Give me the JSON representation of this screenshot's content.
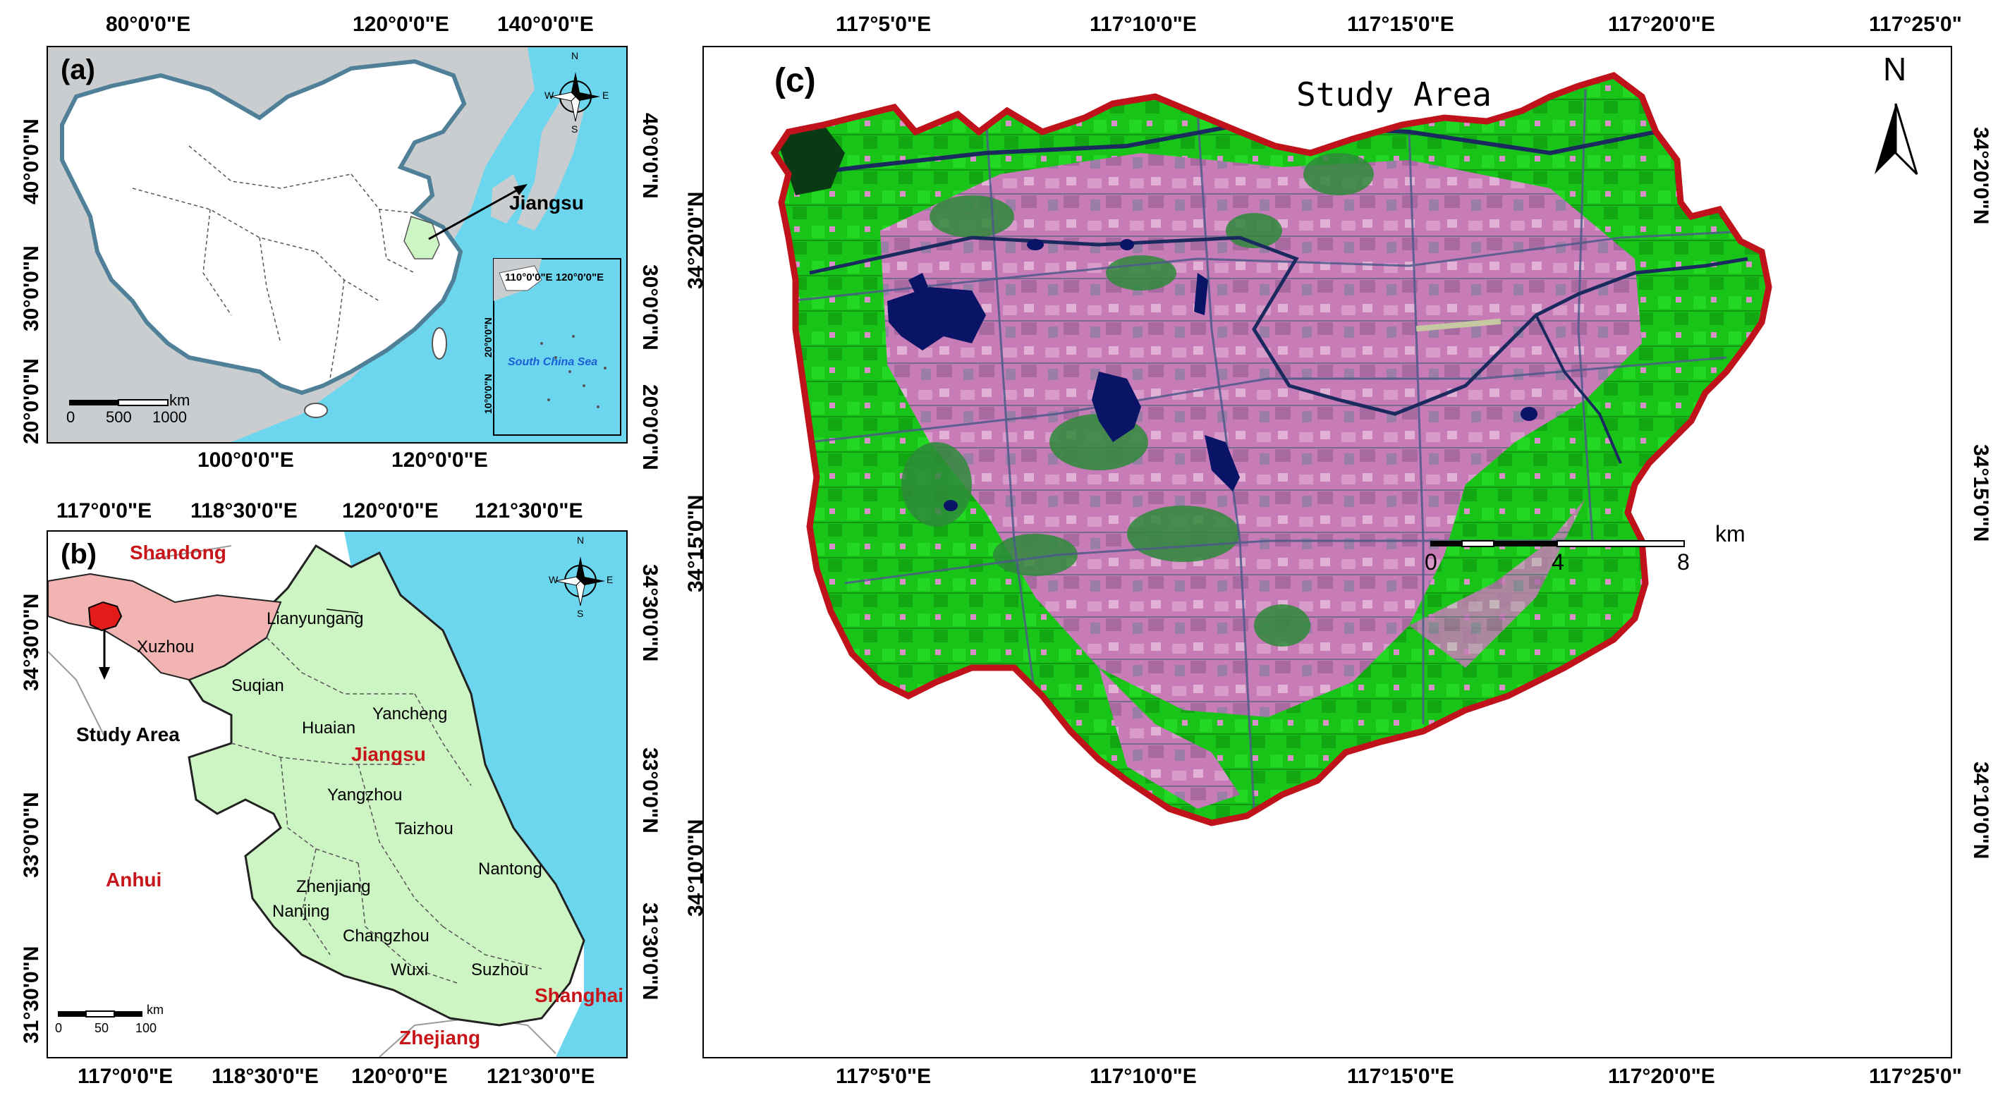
{
  "panel_a": {
    "label": "(a)",
    "top_ticks": [
      "80°0'0\"E",
      "120°0'0\"E",
      "140°0'0\"E"
    ],
    "bottom_ticks": [
      "100°0'0\"E",
      "120°0'0\"E"
    ],
    "left_ticks": [
      "40°0'0\"N",
      "30°0'0\"N",
      "20°0'0\"N"
    ],
    "right_ticks": [
      "40°0'0\"N",
      "30°0'0\"N",
      "20°0'0\"N"
    ],
    "callout": "Jiangsu",
    "inset_title": "110°0'0\"E 120°0'0\"E",
    "inset_left_ticks": [
      "20°0'0\"N",
      "10°0'0\"N"
    ],
    "inset_sea": "South China Sea",
    "scale_unit": "km",
    "scale_labels": [
      "0",
      "500",
      "1000"
    ],
    "compass": [
      "N",
      "S",
      "W",
      "E"
    ]
  },
  "panel_b": {
    "label": "(b)",
    "top_ticks": [
      "117°0'0\"E",
      "118°30'0\"E",
      "120°0'0\"E",
      "121°30'0\"E"
    ],
    "bottom_ticks": [
      "117°0'0\"E",
      "118°30'0\"E",
      "120°0'0\"E",
      "121°30'0\"E"
    ],
    "left_ticks": [
      "34°30'0\"N",
      "33°0'0\"N",
      "31°30'0\"N"
    ],
    "right_ticks": [
      "34°30'0\"N",
      "33°0'0\"N",
      "31°30'0\"N"
    ],
    "province_name": "Jiangsu",
    "neighbors": [
      "Shandong",
      "Anhui",
      "Zhejiang",
      "Shanghai"
    ],
    "cities": [
      "Lianyungang",
      "Xuzhou",
      "Suqian",
      "Yancheng",
      "Huaian",
      "Yangzhou",
      "Taizhou",
      "Nantong",
      "Zhenjiang",
      "Nanjing",
      "Changzhou",
      "Wuxi",
      "Suzhou"
    ],
    "study_area_label": "Study Area",
    "scale_unit": "km",
    "scale_labels": [
      "0",
      "50",
      "100"
    ],
    "compass": [
      "N",
      "S",
      "W",
      "E"
    ]
  },
  "panel_c": {
    "label": "(c)",
    "title": "Study Area",
    "north": "N",
    "top_ticks": [
      "117°5'0\"E",
      "117°10'0\"E",
      "117°15'0\"E",
      "117°20'0\"E",
      "117°25'0\""
    ],
    "bottom_ticks": [
      "117°5'0\"E",
      "117°10'0\"E",
      "117°15'0\"E",
      "117°20'0\"E",
      "117°25'0\""
    ],
    "left_ticks": [
      "34°20'0\"N",
      "34°15'0\"N",
      "34°10'0\"N"
    ],
    "right_ticks": [
      "34°20'0\"N",
      "34°15'0\"N",
      "34°10'0\"N"
    ],
    "scale_unit": "km",
    "scale_labels": [
      "0",
      "4",
      "8"
    ]
  },
  "colors": {
    "sea": "#6cd6ef",
    "land_grey": "#c9cdd0",
    "china": "#ffffff",
    "jiangsu": "#cdf5c3",
    "xuzhou": "#f2b3b3",
    "study": "#e31b1b",
    "boundary": "#c0121a",
    "vegetation": "#19c419",
    "urban": "#c77bb7",
    "water": "#0a1466",
    "neighbor_text": "#c8151a"
  }
}
